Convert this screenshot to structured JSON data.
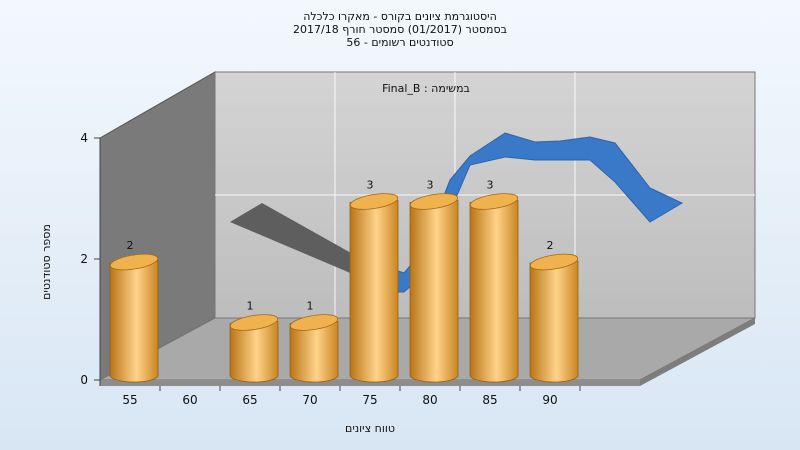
{
  "chart_data": {
    "type": "bar",
    "title_lines": [
      "היסטוגרמת ציונים בקורס - מאקרו כלכלה",
      "בסמסטר (01/2017) סמסטר חורף 2017/18",
      "סטודנטים רשומים - 56"
    ],
    "annotation": "Final_B : במשימה",
    "xlabel": "טווח ציונים",
    "ylabel": "מספר סטודנטים",
    "x_ticks": [
      "55",
      "60",
      "65",
      "70",
      "75",
      "80",
      "85",
      "90"
    ],
    "y_ticks": [
      "0",
      "2",
      "4"
    ],
    "ylim": [
      0,
      4
    ],
    "categories": [
      "55",
      "60",
      "65",
      "70",
      "75",
      "80",
      "85",
      "90"
    ],
    "values": [
      2,
      0,
      1,
      1,
      3,
      3,
      3,
      2
    ],
    "data_labels": [
      "2",
      "",
      "1",
      "1",
      "3",
      "3",
      "3",
      "2"
    ],
    "colors": {
      "bar_light": "#ffd38a",
      "bar_mid": "#e6a23c",
      "bar_dark": "#b97416",
      "ribbon_blue": "#3a78c8",
      "ribbon_gray": "#5e5e5e",
      "back_wall": "#c8c8c8",
      "left_wall": "#7a7a7a",
      "floor": "#a9a9a9"
    },
    "grid": true
  }
}
